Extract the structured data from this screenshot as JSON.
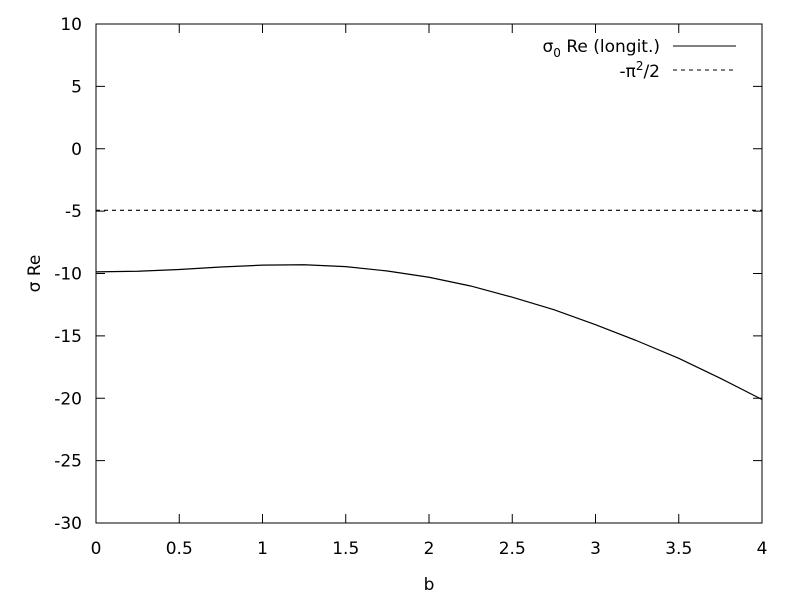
{
  "chart_data": {
    "type": "line",
    "xlabel": "b",
    "ylabel": "σ Re",
    "xlim": [
      0,
      4
    ],
    "ylim": [
      -30,
      10
    ],
    "xticks": [
      0,
      0.5,
      1,
      1.5,
      2,
      2.5,
      3,
      3.5,
      4
    ],
    "yticks": [
      10,
      5,
      0,
      -5,
      -10,
      -15,
      -20,
      -25,
      -30
    ],
    "xtick_labels": [
      "0",
      "0.5",
      "1",
      "1.5",
      "2",
      "2.5",
      "3",
      "3.5",
      "4"
    ],
    "ytick_labels": [
      "10",
      "5",
      "0",
      "-5",
      "-10",
      "-15",
      "-20",
      "-25",
      "-30"
    ],
    "grid": false,
    "legend_position": "top-right",
    "series": [
      {
        "name_main": "σ",
        "name_sub": "0",
        "name_rest": " Re (longit.)",
        "style": "solid",
        "color": "#000000",
        "x": [
          0,
          0.25,
          0.5,
          0.75,
          1.0,
          1.25,
          1.5,
          1.75,
          2.0,
          2.25,
          2.5,
          2.75,
          3.0,
          3.25,
          3.5,
          3.75,
          4.0
        ],
        "y": [
          -9.87,
          -9.82,
          -9.68,
          -9.48,
          -9.33,
          -9.3,
          -9.45,
          -9.8,
          -10.3,
          -11.0,
          -11.9,
          -12.9,
          -14.1,
          -15.4,
          -16.8,
          -18.4,
          -20.1
        ]
      },
      {
        "name_main": "-π",
        "name_sup": "2",
        "name_rest": "/2",
        "style": "dashed",
        "color": "#000000",
        "x": [
          0,
          4
        ],
        "y": [
          -4.935,
          -4.935
        ]
      }
    ]
  }
}
